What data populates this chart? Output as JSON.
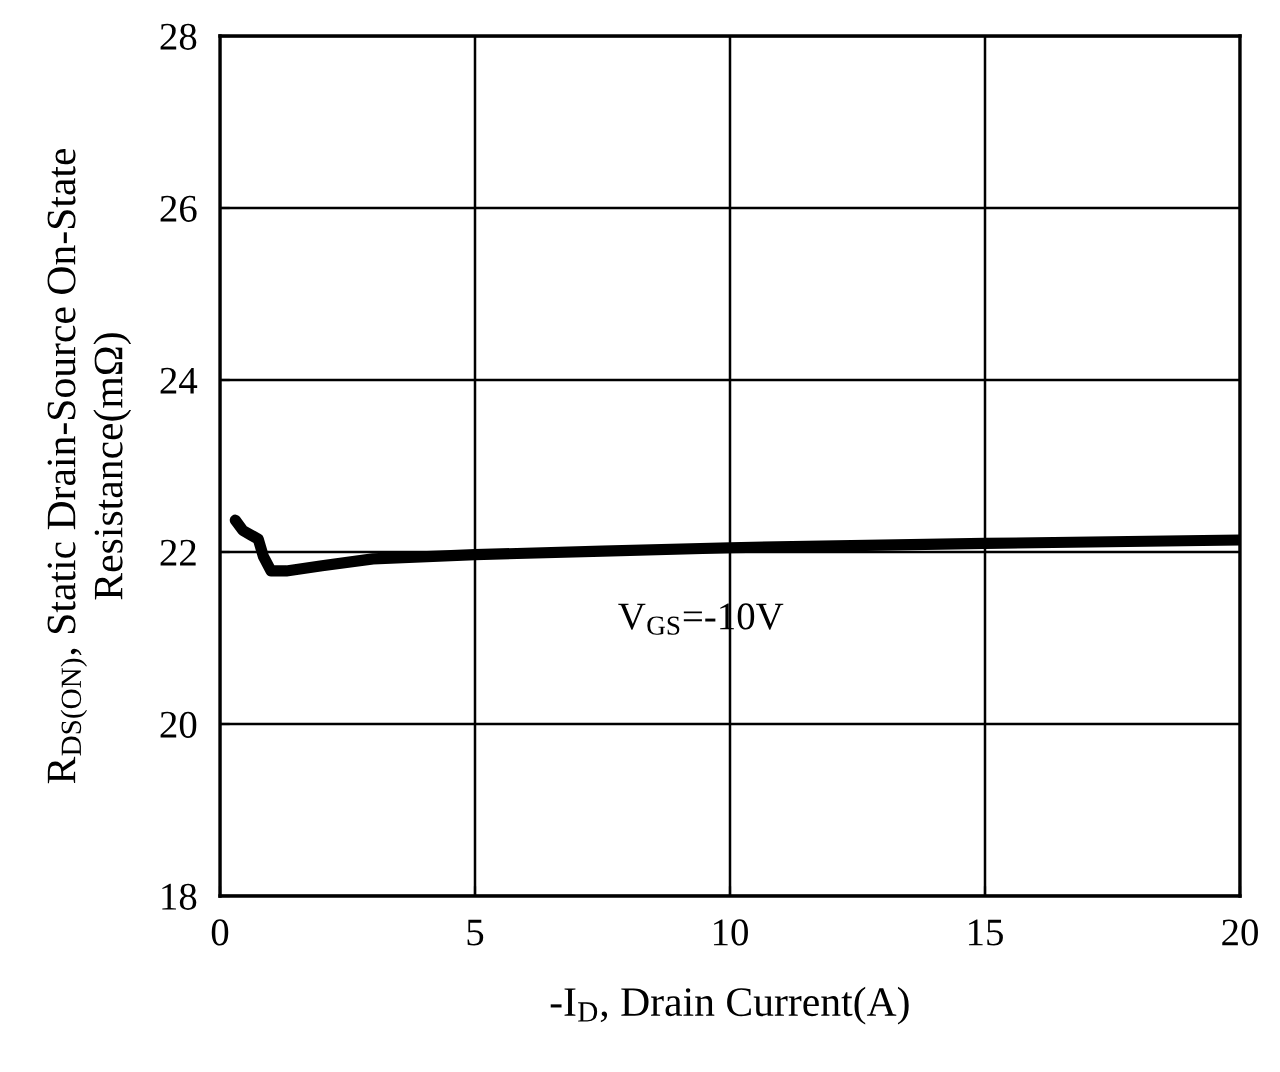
{
  "chart_data": {
    "type": "line",
    "xlabel": "-I$_{D}$, Drain Current(A)",
    "ylabel": "R$_{DS(ON)}$, Static Drain-Source On-State\nResistance(mΩ)",
    "x": [
      0.3,
      0.45,
      0.6,
      0.75,
      0.85,
      1.0,
      1.3,
      2,
      3,
      5,
      7.5,
      10,
      15,
      20
    ],
    "series": [
      {
        "color": "#000000",
        "values": [
          22.37,
          22.25,
          22.2,
          22.15,
          21.95,
          21.78,
          21.78,
          21.84,
          21.92,
          21.97,
          22.01,
          22.05,
          22.1,
          22.14
        ]
      }
    ],
    "xlim": [
      0,
      20
    ],
    "ylim": [
      18,
      28
    ],
    "xticks": [
      0,
      5,
      10,
      15,
      20
    ],
    "yticks": [
      18,
      20,
      22,
      24,
      26,
      28
    ],
    "grid": true,
    "annotations": [
      "V$_{GS}$=-10V"
    ]
  }
}
